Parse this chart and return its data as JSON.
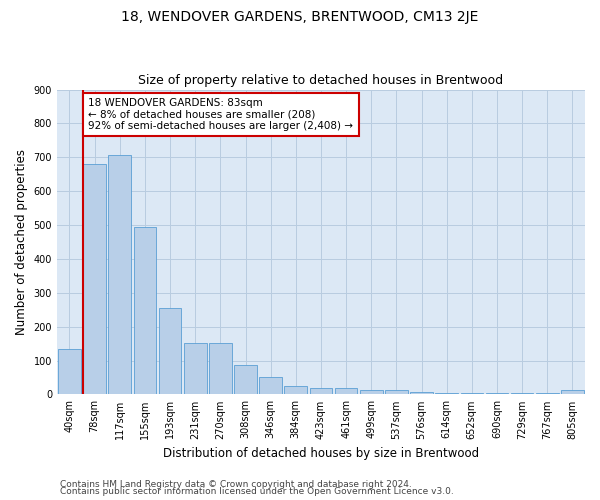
{
  "title": "18, WENDOVER GARDENS, BRENTWOOD, CM13 2JE",
  "subtitle": "Size of property relative to detached houses in Brentwood",
  "xlabel": "Distribution of detached houses by size in Brentwood",
  "ylabel": "Number of detached properties",
  "bar_labels": [
    "40sqm",
    "78sqm",
    "117sqm",
    "155sqm",
    "193sqm",
    "231sqm",
    "270sqm",
    "308sqm",
    "346sqm",
    "384sqm",
    "423sqm",
    "461sqm",
    "499sqm",
    "537sqm",
    "576sqm",
    "614sqm",
    "652sqm",
    "690sqm",
    "729sqm",
    "767sqm",
    "805sqm"
  ],
  "bar_values": [
    135,
    680,
    707,
    495,
    255,
    153,
    153,
    88,
    50,
    25,
    20,
    20,
    12,
    12,
    8,
    5,
    5,
    5,
    3,
    3,
    12
  ],
  "bar_color": "#b8cfe8",
  "bar_edge_color": "#5a9fd4",
  "annotation_text": "18 WENDOVER GARDENS: 83sqm\n← 8% of detached houses are smaller (208)\n92% of semi-detached houses are larger (2,408) →",
  "annotation_box_color": "#ffffff",
  "annotation_box_edge_color": "#cc0000",
  "line_color": "#cc0000",
  "ylim": [
    0,
    900
  ],
  "yticks": [
    0,
    100,
    200,
    300,
    400,
    500,
    600,
    700,
    800,
    900
  ],
  "footer_line1": "Contains HM Land Registry data © Crown copyright and database right 2024.",
  "footer_line2": "Contains public sector information licensed under the Open Government Licence v3.0.",
  "bg_color": "#ffffff",
  "plot_bg_color": "#dce8f5",
  "grid_color": "#b8cce0",
  "title_fontsize": 10,
  "subtitle_fontsize": 9,
  "axis_label_fontsize": 8.5,
  "tick_fontsize": 7,
  "annotation_fontsize": 7.5,
  "footer_fontsize": 6.5
}
